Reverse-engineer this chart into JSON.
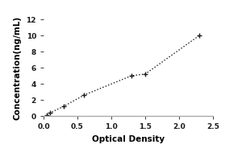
{
  "x": [
    0.05,
    0.1,
    0.3,
    0.6,
    1.3,
    1.5,
    2.3
  ],
  "y": [
    0.1,
    0.4,
    1.2,
    2.6,
    5.0,
    5.2,
    10.0
  ],
  "xlim": [
    0,
    2.5
  ],
  "ylim": [
    0,
    12
  ],
  "xticks": [
    0,
    0.5,
    1,
    1.5,
    2,
    2.5
  ],
  "yticks": [
    0,
    2,
    4,
    6,
    8,
    10,
    12
  ],
  "xlabel": "Optical Density",
  "ylabel": "Concentration(ng/mL)",
  "line_color": "#1a1a1a",
  "marker": "+",
  "linestyle": "dotted",
  "markersize": 5,
  "linewidth": 1.0,
  "bg_color": "#ffffff",
  "spine_color": "#aaaaaa",
  "tick_fontsize": 6.5,
  "label_fontsize": 7.5,
  "font_weight": "bold"
}
